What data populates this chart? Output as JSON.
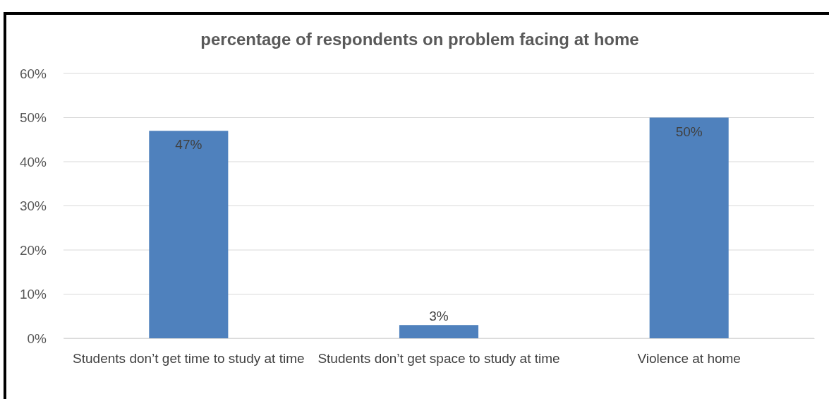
{
  "chart_data": {
    "type": "bar",
    "title": "percentage of respondents on problem facing at home",
    "categories": [
      "Students don’t get time to study at time",
      "Students don’t get space to study at time",
      "Violence at home"
    ],
    "values": [
      47,
      3,
      50
    ],
    "color": "#4f81bd",
    "value_labels": [
      "47%",
      "3%",
      "50%"
    ],
    "ylim": [
      0,
      60
    ],
    "yticks": [
      {
        "value": 0,
        "label": "0%"
      },
      {
        "value": 10,
        "label": "10%"
      },
      {
        "value": 20,
        "label": "20%"
      },
      {
        "value": 30,
        "label": "30%"
      },
      {
        "value": 40,
        "label": "40%"
      },
      {
        "value": 50,
        "label": "50%"
      },
      {
        "value": 60,
        "label": "60%"
      }
    ],
    "grid": "y"
  }
}
